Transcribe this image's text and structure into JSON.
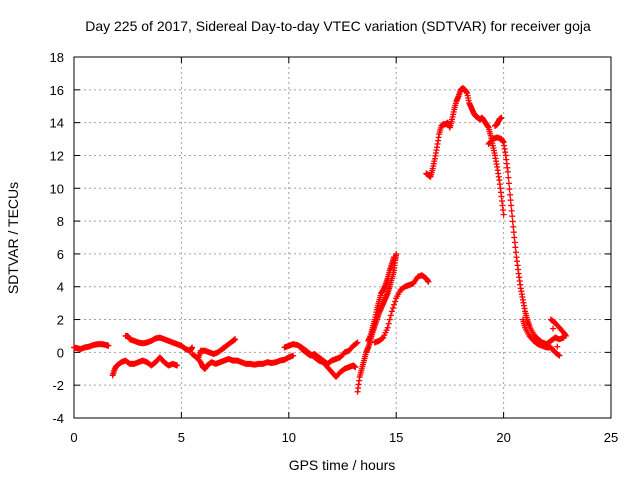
{
  "chart_data": {
    "type": "scatter",
    "title": "Day 225 of 2017, Sidereal Day-to-day VTEC variation (SDTVAR) for receiver goja",
    "xlabel": "GPS time / hours",
    "ylabel": "SDTVAR / TECUs",
    "xlim": [
      0,
      25
    ],
    "ylim": [
      -4,
      18
    ],
    "xticks": [
      0,
      5,
      10,
      15,
      20,
      25
    ],
    "yticks": [
      -4,
      -2,
      0,
      2,
      4,
      6,
      8,
      10,
      12,
      14,
      16,
      18
    ],
    "grid": true,
    "marker": "+",
    "color": "#ff0000",
    "series": [
      {
        "name": "seg1",
        "points": [
          [
            0.0,
            0.3
          ],
          [
            0.15,
            0.25
          ],
          [
            0.3,
            0.2
          ],
          [
            0.5,
            0.3
          ],
          [
            0.7,
            0.35
          ],
          [
            0.9,
            0.45
          ],
          [
            1.1,
            0.5
          ],
          [
            1.3,
            0.5
          ],
          [
            1.5,
            0.45
          ],
          [
            1.6,
            0.4
          ]
        ]
      },
      {
        "name": "seg2",
        "points": [
          [
            1.8,
            -1.4
          ],
          [
            1.9,
            -1.0
          ],
          [
            2.0,
            -0.8
          ],
          [
            2.2,
            -0.6
          ],
          [
            2.4,
            -0.5
          ],
          [
            2.6,
            -0.7
          ],
          [
            2.8,
            -0.7
          ],
          [
            3.0,
            -0.6
          ],
          [
            3.2,
            -0.5
          ],
          [
            3.4,
            -0.6
          ],
          [
            3.6,
            -0.8
          ],
          [
            3.8,
            -0.6
          ],
          [
            4.0,
            -0.3
          ],
          [
            4.2,
            -0.6
          ],
          [
            4.4,
            -0.8
          ],
          [
            4.6,
            -0.7
          ],
          [
            4.8,
            -0.8
          ]
        ]
      },
      {
        "name": "seg3",
        "points": [
          [
            2.4,
            1.0
          ],
          [
            2.5,
            1.0
          ],
          [
            2.6,
            0.8
          ],
          [
            2.8,
            0.7
          ],
          [
            3.0,
            0.6
          ],
          [
            3.2,
            0.55
          ],
          [
            3.4,
            0.6
          ],
          [
            3.6,
            0.7
          ],
          [
            3.8,
            0.85
          ],
          [
            4.0,
            0.9
          ],
          [
            4.2,
            0.8
          ],
          [
            4.4,
            0.7
          ],
          [
            4.6,
            0.6
          ],
          [
            4.8,
            0.5
          ],
          [
            5.0,
            0.4
          ],
          [
            5.2,
            0.2
          ],
          [
            5.4,
            0.1
          ],
          [
            5.5,
            0.3
          ]
        ]
      },
      {
        "name": "seg4",
        "points": [
          [
            5.5,
            -0.1
          ],
          [
            5.7,
            -0.3
          ],
          [
            5.9,
            -0.6
          ],
          [
            6.0,
            -0.9
          ],
          [
            6.1,
            -1.0
          ],
          [
            6.2,
            -0.8
          ],
          [
            6.4,
            -0.6
          ],
          [
            6.6,
            -0.7
          ],
          [
            6.8,
            -0.6
          ],
          [
            7.0,
            -0.5
          ],
          [
            7.2,
            -0.4
          ],
          [
            7.4,
            -0.5
          ],
          [
            7.6,
            -0.5
          ],
          [
            7.8,
            -0.6
          ],
          [
            8.0,
            -0.7
          ],
          [
            8.2,
            -0.7
          ],
          [
            8.4,
            -0.75
          ],
          [
            8.6,
            -0.7
          ],
          [
            8.8,
            -0.7
          ],
          [
            9.0,
            -0.6
          ],
          [
            9.2,
            -0.65
          ],
          [
            9.4,
            -0.6
          ],
          [
            9.6,
            -0.5
          ],
          [
            9.8,
            -0.45
          ],
          [
            10.0,
            -0.3
          ],
          [
            10.2,
            -0.2
          ]
        ]
      },
      {
        "name": "seg5",
        "points": [
          [
            5.8,
            -0.3
          ],
          [
            5.9,
            0.1
          ],
          [
            6.1,
            0.1
          ],
          [
            6.3,
            0.0
          ],
          [
            6.5,
            -0.1
          ],
          [
            6.7,
            0.0
          ],
          [
            6.9,
            0.2
          ],
          [
            7.0,
            0.3
          ],
          [
            7.2,
            0.5
          ],
          [
            7.4,
            0.7
          ],
          [
            7.5,
            0.8
          ]
        ]
      },
      {
        "name": "seg6",
        "points": [
          [
            9.8,
            0.3
          ],
          [
            10.0,
            0.4
          ],
          [
            10.2,
            0.5
          ],
          [
            10.4,
            0.45
          ],
          [
            10.6,
            0.3
          ],
          [
            10.8,
            0.1
          ],
          [
            11.0,
            -0.1
          ],
          [
            11.2,
            -0.3
          ],
          [
            11.4,
            -0.5
          ],
          [
            11.6,
            -0.6
          ],
          [
            11.8,
            -0.9
          ],
          [
            12.0,
            -1.2
          ],
          [
            12.2,
            -1.5
          ],
          [
            12.4,
            -1.2
          ],
          [
            12.6,
            -1.0
          ],
          [
            12.8,
            -0.9
          ],
          [
            13.0,
            -0.8
          ],
          [
            13.1,
            -0.9
          ]
        ]
      },
      {
        "name": "seg7",
        "points": [
          [
            10.6,
            0.2
          ],
          [
            10.8,
            0.0
          ],
          [
            11.0,
            -0.2
          ],
          [
            11.2,
            -0.1
          ],
          [
            11.4,
            -0.3
          ],
          [
            11.6,
            -0.5
          ],
          [
            11.8,
            -0.7
          ],
          [
            12.0,
            -0.5
          ],
          [
            12.2,
            -0.4
          ],
          [
            12.4,
            -0.3
          ],
          [
            12.6,
            0.0
          ],
          [
            12.8,
            0.1
          ],
          [
            13.0,
            0.4
          ],
          [
            13.2,
            0.6
          ]
        ]
      },
      {
        "name": "seg8",
        "points": [
          [
            13.2,
            -2.4
          ],
          [
            13.3,
            -1.5
          ],
          [
            13.4,
            -1.0
          ],
          [
            13.5,
            -0.5
          ],
          [
            13.6,
            0.0
          ],
          [
            13.7,
            0.3
          ],
          [
            13.8,
            0.7
          ],
          [
            13.9,
            1.2
          ],
          [
            14.0,
            1.6
          ],
          [
            14.1,
            2.0
          ],
          [
            14.2,
            2.4
          ],
          [
            14.3,
            2.7
          ],
          [
            14.4,
            3.0
          ],
          [
            14.5,
            3.3
          ],
          [
            14.6,
            3.6
          ],
          [
            14.7,
            4.0
          ],
          [
            14.8,
            4.5
          ],
          [
            14.9,
            5.0
          ],
          [
            14.95,
            5.6
          ],
          [
            15.0,
            6.0
          ]
        ]
      },
      {
        "name": "seg9",
        "points": [
          [
            13.7,
            0.7
          ],
          [
            13.8,
            1.0
          ],
          [
            13.9,
            1.5
          ],
          [
            14.0,
            2.0
          ],
          [
            14.1,
            2.6
          ],
          [
            14.2,
            3.1
          ],
          [
            14.3,
            3.6
          ],
          [
            14.4,
            3.8
          ],
          [
            14.5,
            4.1
          ],
          [
            14.6,
            4.5
          ],
          [
            14.7,
            5.0
          ],
          [
            14.8,
            5.4
          ],
          [
            14.9,
            5.8
          ]
        ]
      },
      {
        "name": "seg10",
        "points": [
          [
            14.0,
            0.6
          ],
          [
            14.2,
            0.7
          ],
          [
            14.4,
            0.9
          ],
          [
            14.6,
            1.5
          ],
          [
            14.8,
            2.5
          ],
          [
            15.0,
            3.3
          ],
          [
            15.2,
            3.8
          ],
          [
            15.4,
            4.0
          ],
          [
            15.6,
            4.1
          ],
          [
            15.8,
            4.2
          ],
          [
            16.0,
            4.6
          ],
          [
            16.2,
            4.7
          ],
          [
            16.4,
            4.5
          ],
          [
            16.5,
            4.3
          ]
        ]
      },
      {
        "name": "seg11",
        "points": [
          [
            16.4,
            10.9
          ],
          [
            16.5,
            10.8
          ],
          [
            16.6,
            10.7
          ],
          [
            16.7,
            11.2
          ],
          [
            16.8,
            11.8
          ],
          [
            16.9,
            12.5
          ],
          [
            17.0,
            13.3
          ],
          [
            17.1,
            13.8
          ],
          [
            17.2,
            13.9
          ],
          [
            17.3,
            13.9
          ],
          [
            17.4,
            14.0
          ],
          [
            17.5,
            13.7
          ],
          [
            17.6,
            14.2
          ],
          [
            17.7,
            14.8
          ],
          [
            17.8,
            15.3
          ],
          [
            17.9,
            15.6
          ],
          [
            18.0,
            16.0
          ],
          [
            18.1,
            16.1
          ],
          [
            18.2,
            16.0
          ],
          [
            18.3,
            15.8
          ],
          [
            18.4,
            15.2
          ],
          [
            18.5,
            14.9
          ],
          [
            18.6,
            14.6
          ],
          [
            18.7,
            14.4
          ],
          [
            18.8,
            14.3
          ],
          [
            18.9,
            14.2
          ],
          [
            19.0,
            14.3
          ],
          [
            19.1,
            14.1
          ],
          [
            19.2,
            13.9
          ],
          [
            19.3,
            13.7
          ],
          [
            19.4,
            13.2
          ],
          [
            19.5,
            12.6
          ],
          [
            19.6,
            12.0
          ],
          [
            19.7,
            11.3
          ],
          [
            19.8,
            10.5
          ],
          [
            19.9,
            9.5
          ],
          [
            20.0,
            8.4
          ]
        ]
      },
      {
        "name": "seg12",
        "points": [
          [
            19.3,
            12.7
          ],
          [
            19.5,
            13.0
          ],
          [
            19.7,
            13.1
          ],
          [
            19.9,
            13.0
          ],
          [
            20.0,
            12.8
          ],
          [
            20.1,
            12.0
          ],
          [
            20.2,
            11.0
          ],
          [
            20.3,
            9.6
          ],
          [
            20.4,
            8.3
          ],
          [
            20.5,
            7.0
          ],
          [
            20.6,
            5.8
          ],
          [
            20.7,
            4.8
          ],
          [
            20.8,
            3.9
          ],
          [
            20.9,
            3.2
          ],
          [
            21.0,
            2.5
          ],
          [
            21.1,
            2.0
          ],
          [
            21.2,
            1.6
          ],
          [
            21.4,
            1.1
          ],
          [
            21.6,
            0.8
          ],
          [
            21.8,
            0.6
          ],
          [
            22.0,
            0.5
          ],
          [
            22.2,
            0.7
          ],
          [
            22.4,
            0.9
          ],
          [
            22.6,
            0.8
          ],
          [
            22.8,
            0.9
          ]
        ]
      },
      {
        "name": "seg13",
        "points": [
          [
            20.9,
            2.0
          ],
          [
            21.0,
            1.5
          ],
          [
            21.2,
            1.0
          ],
          [
            21.4,
            0.7
          ],
          [
            21.6,
            0.5
          ],
          [
            21.8,
            0.4
          ],
          [
            22.0,
            0.3
          ],
          [
            22.2,
            0.3
          ],
          [
            22.4,
            0.0
          ],
          [
            22.6,
            -0.2
          ],
          [
            22.2,
            2.0
          ],
          [
            22.4,
            1.8
          ],
          [
            22.6,
            1.5
          ],
          [
            22.8,
            1.2
          ],
          [
            22.9,
            1.0
          ]
        ]
      },
      {
        "name": "seg14",
        "points": [
          [
            19.6,
            13.8
          ],
          [
            19.7,
            13.9
          ],
          [
            19.8,
            14.2
          ],
          [
            19.9,
            14.3
          ]
        ]
      }
    ]
  }
}
